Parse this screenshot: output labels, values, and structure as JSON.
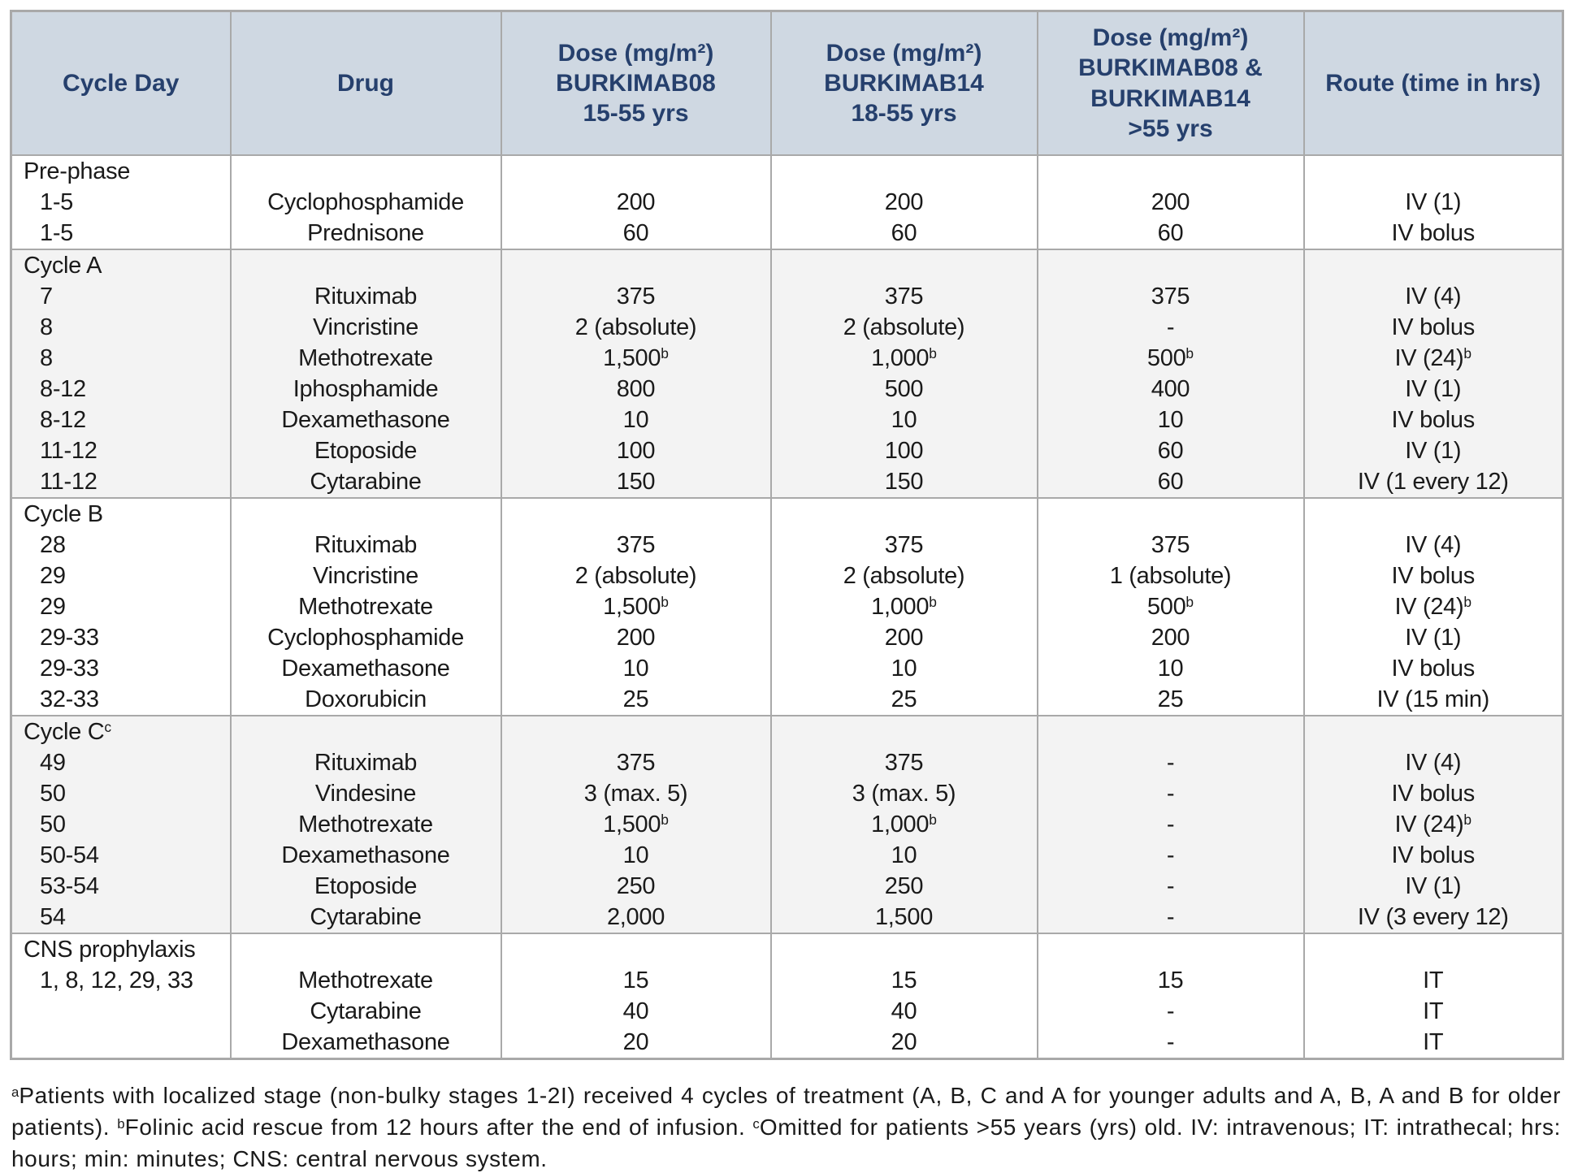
{
  "colors": {
    "header_bg": "#cfd8e2",
    "header_text": "#26406d",
    "border_gray": "#a9a9a9",
    "shaded_section_bg": "#f3f3f3",
    "body_text": "#1a1a1a"
  },
  "table": {
    "columns": [
      {
        "label": "Cycle Day"
      },
      {
        "label": "Drug"
      },
      {
        "label": "Dose (mg/m²)\nBURKIMAB08\n15-55 yrs"
      },
      {
        "label": "Dose (mg/m²)\nBURKIMAB14\n18-55 yrs"
      },
      {
        "label": "Dose (mg/m²)\nBURKIMAB08 &\nBURKIMAB14\n>55 yrs"
      },
      {
        "label": "Route (time in hrs)"
      }
    ],
    "sections": [
      {
        "label": "Pre-phase",
        "shaded": false,
        "rows": [
          {
            "day": "1-5",
            "drug": "Cyclophosphamide",
            "dose08": "200",
            "dose14": "200",
            "dose_older": "200",
            "route": "IV (1)"
          },
          {
            "day": "1-5",
            "drug": "Prednisone",
            "dose08": "60",
            "dose14": "60",
            "dose_older": "60",
            "route": "IV bolus"
          }
        ]
      },
      {
        "label": "Cycle A",
        "shaded": true,
        "rows": [
          {
            "day": "7",
            "drug": "Rituximab",
            "dose08": "375",
            "dose14": "375",
            "dose_older": "375",
            "route": "IV (4)"
          },
          {
            "day": "8",
            "drug": "Vincristine",
            "dose08": "2 (absolute)",
            "dose14": "2 (absolute)",
            "dose_older": "-",
            "route": "IV bolus"
          },
          {
            "day": "8",
            "drug": "Methotrexate",
            "dose08": "1,500^b",
            "dose14": "1,000^b",
            "dose_older": "500^b",
            "route": "IV (24)^b"
          },
          {
            "day": "8-12",
            "drug": "Iphosphamide",
            "dose08": "800",
            "dose14": "500",
            "dose_older": "400",
            "route": "IV (1)"
          },
          {
            "day": "8-12",
            "drug": "Dexamethasone",
            "dose08": "10",
            "dose14": "10",
            "dose_older": "10",
            "route": "IV bolus"
          },
          {
            "day": "11-12",
            "drug": "Etoposide",
            "dose08": "100",
            "dose14": "100",
            "dose_older": "60",
            "route": "IV (1)"
          },
          {
            "day": "11-12",
            "drug": "Cytarabine",
            "dose08": "150",
            "dose14": "150",
            "dose_older": "60",
            "route": "IV (1 every 12)"
          }
        ]
      },
      {
        "label": "Cycle B",
        "shaded": false,
        "rows": [
          {
            "day": "28",
            "drug": "Rituximab",
            "dose08": "375",
            "dose14": "375",
            "dose_older": "375",
            "route": "IV (4)"
          },
          {
            "day": "29",
            "drug": "Vincristine",
            "dose08": "2 (absolute)",
            "dose14": "2 (absolute)",
            "dose_older": "1 (absolute)",
            "route": "IV bolus"
          },
          {
            "day": "29",
            "drug": "Methotrexate",
            "dose08": "1,500^b",
            "dose14": "1,000^b",
            "dose_older": "500^b",
            "route": "IV (24)^b"
          },
          {
            "day": "29-33",
            "drug": "Cyclophosphamide",
            "dose08": "200",
            "dose14": "200",
            "dose_older": "200",
            "route": "IV (1)"
          },
          {
            "day": "29-33",
            "drug": "Dexamethasone",
            "dose08": "10",
            "dose14": "10",
            "dose_older": "10",
            "route": "IV bolus"
          },
          {
            "day": "32-33",
            "drug": "Doxorubicin",
            "dose08": "25",
            "dose14": "25",
            "dose_older": "25",
            "route": "IV (15 min)"
          }
        ]
      },
      {
        "label": "Cycle C^c",
        "shaded": true,
        "rows": [
          {
            "day": "49",
            "drug": "Rituximab",
            "dose08": "375",
            "dose14": "375",
            "dose_older": "-",
            "route": "IV (4)"
          },
          {
            "day": "50",
            "drug": "Vindesine",
            "dose08": "3 (max. 5)",
            "dose14": "3 (max. 5)",
            "dose_older": "-",
            "route": "IV bolus"
          },
          {
            "day": "50",
            "drug": "Methotrexate",
            "dose08": "1,500^b",
            "dose14": "1,000^b",
            "dose_older": "-",
            "route": "IV (24)^b"
          },
          {
            "day": "50-54",
            "drug": "Dexamethasone",
            "dose08": "10",
            "dose14": "10",
            "dose_older": "-",
            "route": "IV bolus"
          },
          {
            "day": "53-54",
            "drug": "Etoposide",
            "dose08": "250",
            "dose14": "250",
            "dose_older": "-",
            "route": "IV (1)"
          },
          {
            "day": "54",
            "drug": "Cytarabine",
            "dose08": "2,000",
            "dose14": "1,500",
            "dose_older": "-",
            "route": "IV (3 every 12)"
          }
        ]
      },
      {
        "label": "CNS prophylaxis",
        "shaded": false,
        "rows": [
          {
            "day": "1, 8, 12, 29, 33",
            "drug": "Methotrexate",
            "dose08": "15",
            "dose14": "15",
            "dose_older": "15",
            "route": "IT"
          },
          {
            "day": "",
            "drug": "Cytarabine",
            "dose08": "40",
            "dose14": "40",
            "dose_older": "-",
            "route": "IT"
          },
          {
            "day": "",
            "drug": "Dexamethasone",
            "dose08": "20",
            "dose14": "20",
            "dose_older": "-",
            "route": "IT"
          }
        ]
      }
    ]
  },
  "footnote": {
    "text": "^aPatients with localized stage (non-bulky stages 1-2I) received 4 cycles of treatment (A, B, C and A for younger adults and A, B, A and B for older patients). ^bFolinic acid rescue from 12 hours after the end of infusion. ^cOmitted for patients >55 years (yrs) old. IV: intravenous; IT: intrathecal; hrs: hours; min: minutes; CNS: central nervous system."
  }
}
